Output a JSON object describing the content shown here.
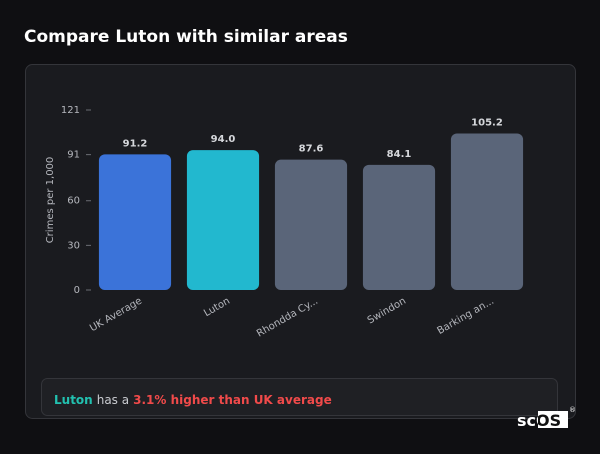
{
  "title": "Compare Luton with similar areas",
  "chart_data": {
    "type": "bar",
    "categories": [
      "UK Average",
      "Luton",
      "Rhondda Cy...",
      "Swindon",
      "Barking an..."
    ],
    "values": [
      91.2,
      94,
      87.6,
      84.1,
      105.2
    ],
    "value_labels": [
      "91.2",
      "94.0",
      "87.6",
      "84.1",
      "105.2"
    ],
    "colors": [
      "#3b73d9",
      "#22b8cf",
      "#5a6579",
      "#5a6579",
      "#5a6579"
    ],
    "y_label": "Crimes per 1,000",
    "ylim": [
      0,
      121
    ],
    "yticks": [
      0,
      30,
      60,
      91,
      121
    ]
  },
  "summary": {
    "area": "Luton",
    "text": "has a",
    "highlight": "3.1% higher than UK average"
  },
  "logo": {
    "text": "scOS",
    "mark": "®"
  }
}
